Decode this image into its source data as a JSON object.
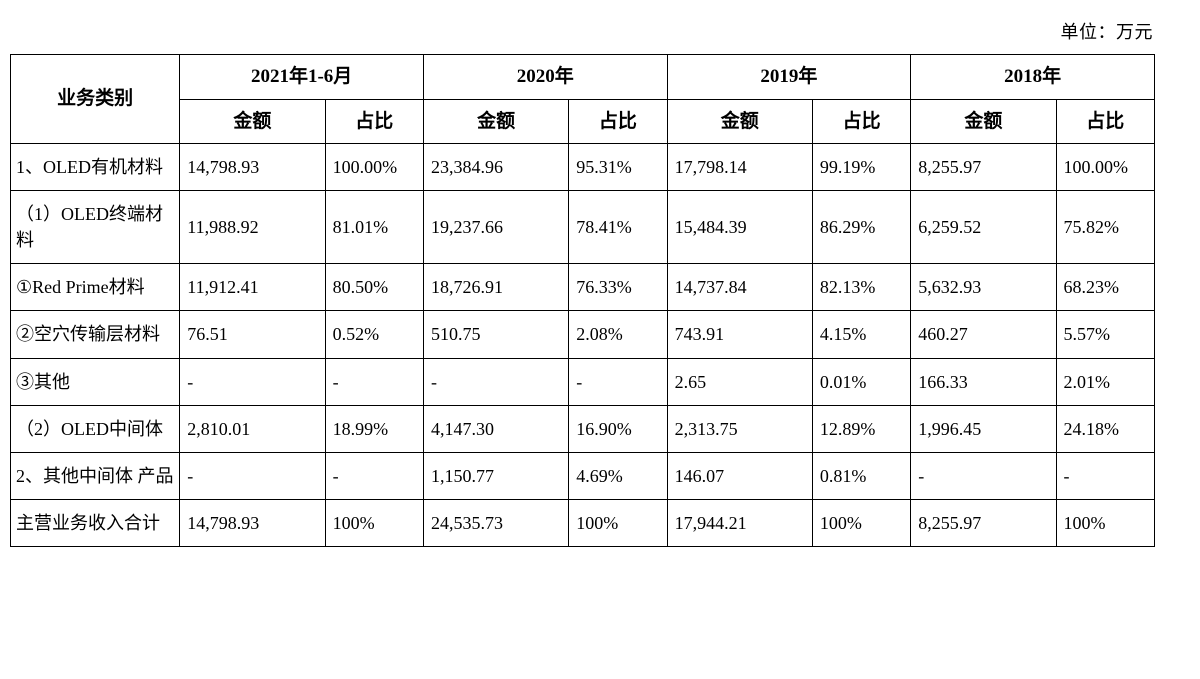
{
  "unit_label": "单位：万元",
  "table": {
    "header": {
      "category": "业务类别",
      "periods": [
        "2021年1-6月",
        "2020年",
        "2019年",
        "2018年"
      ],
      "subheaders": [
        "金额",
        "占比"
      ]
    },
    "rows": [
      {
        "category": "1、OLED有机材料",
        "values": [
          "14,798.93",
          "100.00%",
          "23,384.96",
          "95.31%",
          "17,798.14",
          "99.19%",
          "8,255.97",
          "100.00%"
        ]
      },
      {
        "category": "（1）OLED终端材料",
        "values": [
          "11,988.92",
          "81.01%",
          "19,237.66",
          "78.41%",
          "15,484.39",
          "86.29%",
          "6,259.52",
          "75.82%"
        ]
      },
      {
        "category": "①Red Prime材料",
        "values": [
          "11,912.41",
          "80.50%",
          "18,726.91",
          "76.33%",
          "14,737.84",
          "82.13%",
          "5,632.93",
          "68.23%"
        ]
      },
      {
        "category": "②空穴传输层材料",
        "values": [
          "76.51",
          "0.52%",
          "510.75",
          "2.08%",
          "743.91",
          "4.15%",
          "460.27",
          "5.57%"
        ]
      },
      {
        "category": "③其他",
        "values": [
          "-",
          "-",
          "-",
          "-",
          "2.65",
          "0.01%",
          "166.33",
          "2.01%"
        ]
      },
      {
        "category": "（2）OLED中间体",
        "values": [
          "2,810.01",
          "18.99%",
          "4,147.30",
          "16.90%",
          "2,313.75",
          "12.89%",
          "1,996.45",
          "24.18%"
        ]
      },
      {
        "category": "2、其他中间体 产品",
        "values": [
          "-",
          "-",
          "1,150.77",
          "4.69%",
          "146.07",
          "0.81%",
          "-",
          "-"
        ]
      },
      {
        "category": "主营业务收入合计",
        "values": [
          "14,798.93",
          "100%",
          "24,535.73",
          "100%",
          "17,944.21",
          "100%",
          "8,255.97",
          "100%"
        ]
      }
    ]
  }
}
